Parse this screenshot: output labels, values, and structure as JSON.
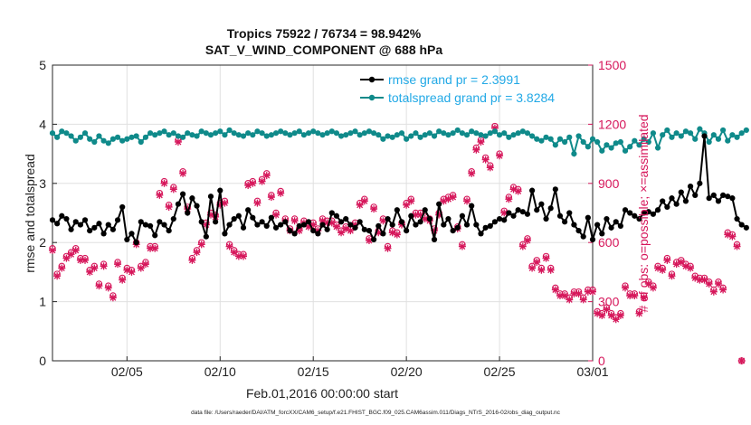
{
  "chart_data": {
    "type": "line",
    "title_line1": "Tropics 75922 / 76734 = 98.942%",
    "title_line2": "SAT_V_WIND_COMPONENT @ 688 hPa",
    "xlabel": "Feb.01,2016 00:00:00 start",
    "ylabel_left": "rmse and totalspread",
    "ylabel_right": "# of obs: o=possible; ×=assimilated",
    "footer": "data file: /Users/raeder/DAI/ATM_forcXX/CAM6_setup/f.e21.FHIST_BGC.f09_025.CAM6assim.011/Diags_NTrS_2016-02/obs_diag_output.nc",
    "xlim": [
      1,
      30
    ],
    "ylim_left": [
      0,
      5
    ],
    "ylim_right": [
      0,
      1500
    ],
    "x_ticks": [
      5,
      10,
      15,
      20,
      25,
      30
    ],
    "x_tick_labels": [
      "02/05",
      "02/10",
      "02/15",
      "02/20",
      "02/25",
      "03/01"
    ],
    "y_left_ticks": [
      "0",
      "1",
      "2",
      "3",
      "4",
      "5"
    ],
    "y_right_ticks": [
      "0",
      "300",
      "600",
      "900",
      "1200",
      "1500"
    ],
    "legend": {
      "rmse": "rmse grand pr = 2.3991",
      "spread": "totalspread grand pr = 3.8284"
    },
    "colors": {
      "rmse": "#000000",
      "spread": "#0f8a8a",
      "obs": "#d6175b",
      "legend_text": "#22a9e6"
    },
    "x_start": 1.0,
    "x_step": 0.25,
    "series": [
      {
        "name": "rmse",
        "values": [
          2.38,
          2.32,
          2.45,
          2.4,
          2.22,
          2.35,
          2.3,
          2.38,
          2.2,
          2.25,
          2.32,
          2.15,
          2.3,
          2.22,
          2.38,
          2.6,
          2.05,
          2.15,
          2.0,
          2.35,
          2.3,
          2.28,
          2.12,
          2.35,
          2.3,
          2.2,
          2.4,
          2.65,
          2.82,
          2.5,
          2.75,
          2.62,
          2.35,
          2.1,
          2.78,
          2.35,
          2.88,
          2.15,
          2.3,
          2.4,
          2.45,
          2.25,
          2.55,
          2.42,
          2.3,
          2.35,
          2.28,
          2.42,
          2.25,
          2.3,
          2.35,
          2.2,
          2.15,
          2.28,
          2.3,
          2.35,
          2.2,
          2.15,
          2.3,
          2.22,
          2.5,
          2.45,
          2.35,
          2.4,
          2.3,
          2.25,
          2.35,
          2.22,
          2.2,
          2.05,
          2.28,
          2.15,
          2.4,
          2.3,
          2.55,
          2.35,
          2.2,
          2.45,
          2.3,
          2.35,
          2.55,
          2.4,
          2.05,
          2.65,
          2.3,
          2.4,
          2.2,
          2.25,
          2.45,
          2.3,
          2.62,
          2.3,
          2.15,
          2.25,
          2.28,
          2.35,
          2.4,
          2.38,
          2.5,
          2.45,
          2.55,
          2.52,
          2.48,
          2.88,
          2.55,
          2.65,
          2.4,
          2.58,
          2.9,
          2.45,
          2.35,
          2.5,
          2.3,
          2.2,
          2.1,
          2.42,
          2.05,
          2.3,
          2.15,
          2.4,
          2.25,
          2.35,
          2.28,
          2.55,
          2.5,
          2.45,
          2.4,
          2.5,
          2.52,
          2.48,
          2.55,
          2.7,
          2.6,
          2.75,
          2.65,
          2.85,
          2.7,
          2.95,
          2.8,
          3.0,
          3.8,
          2.75,
          2.8,
          2.7,
          2.8,
          2.78,
          2.75,
          2.4,
          2.3,
          2.25
        ]
      },
      {
        "name": "totalspread",
        "values": [
          3.85,
          3.78,
          3.88,
          3.85,
          3.8,
          3.72,
          3.78,
          3.85,
          3.75,
          3.7,
          3.8,
          3.72,
          3.68,
          3.75,
          3.78,
          3.72,
          3.75,
          3.78,
          3.8,
          3.7,
          3.78,
          3.85,
          3.82,
          3.85,
          3.88,
          3.82,
          3.85,
          3.8,
          3.78,
          3.85,
          3.82,
          3.8,
          3.88,
          3.85,
          3.82,
          3.85,
          3.88,
          3.82,
          3.9,
          3.85,
          3.82,
          3.8,
          3.85,
          3.82,
          3.88,
          3.85,
          3.8,
          3.82,
          3.85,
          3.88,
          3.85,
          3.82,
          3.85,
          3.88,
          3.82,
          3.85,
          3.88,
          3.85,
          3.82,
          3.85,
          3.88,
          3.85,
          3.8,
          3.82,
          3.85,
          3.88,
          3.82,
          3.85,
          3.88,
          3.85,
          3.82,
          3.75,
          3.8,
          3.78,
          3.82,
          3.85,
          3.75,
          3.8,
          3.85,
          3.78,
          3.82,
          3.85,
          3.8,
          3.88,
          3.85,
          3.82,
          3.85,
          3.9,
          3.85,
          3.82,
          3.88,
          3.85,
          3.82,
          3.8,
          3.85,
          3.88,
          3.82,
          3.85,
          3.78,
          3.82,
          3.85,
          3.88,
          3.85,
          3.8,
          3.75,
          3.72,
          3.78,
          3.75,
          3.65,
          3.75,
          3.7,
          3.78,
          3.5,
          3.8,
          3.7,
          3.62,
          3.75,
          3.7,
          3.55,
          3.65,
          3.6,
          3.68,
          3.7,
          3.55,
          3.62,
          3.72,
          3.65,
          3.75,
          3.7,
          3.85,
          3.6,
          3.82,
          3.9,
          3.78,
          3.85,
          3.8,
          3.88,
          3.85,
          3.75,
          3.92,
          3.85,
          3.7,
          3.82,
          3.75,
          3.9,
          3.72,
          3.82,
          3.78,
          3.85,
          3.9
        ]
      },
      {
        "name": "obs_possible",
        "values": [
          570,
          440,
          480,
          530,
          550,
          570,
          520,
          520,
          460,
          480,
          390,
          490,
          380,
          330,
          500,
          420,
          470,
          460,
          600,
          480,
          500,
          580,
          580,
          850,
          910,
          790,
          880,
          1120,
          960,
          780,
          520,
          560,
          600,
          700,
          750,
          740,
          800,
          810,
          590,
          560,
          540,
          540,
          900,
          910,
          810,
          920,
          950,
          840,
          750,
          860,
          720,
          670,
          720,
          670,
          710,
          690,
          700,
          670,
          720,
          710,
          710,
          690,
          660,
          680,
          670,
          700,
          800,
          820,
          620,
          780,
          660,
          720,
          580,
          660,
          650,
          700,
          800,
          820,
          750,
          750,
          730,
          720,
          670,
          750,
          820,
          830,
          840,
          680,
          590,
          820,
          960,
          1080,
          1120,
          1030,
          990,
          1190,
          1050,
          760,
          830,
          880,
          870,
          590,
          620,
          480,
          510,
          470,
          530,
          470,
          370,
          340,
          340,
          320,
          350,
          350,
          320,
          360,
          360,
          250,
          240,
          270,
          240,
          220,
          240,
          380,
          340,
          340,
          250,
          330,
          400,
          380,
          480,
          470,
          520,
          440,
          500,
          510,
          490,
          480,
          430,
          420,
          420,
          400,
          360,
          400,
          370,
          650,
          640,
          590,
          0
        ]
      },
      {
        "name": "obs_assimilated",
        "values": [
          560,
          430,
          470,
          520,
          540,
          560,
          510,
          510,
          450,
          470,
          380,
          480,
          370,
          320,
          490,
          410,
          460,
          450,
          590,
          470,
          490,
          570,
          570,
          840,
          900,
          780,
          870,
          1110,
          950,
          770,
          510,
          550,
          590,
          690,
          740,
          730,
          790,
          800,
          580,
          550,
          530,
          530,
          890,
          900,
          800,
          910,
          940,
          830,
          740,
          850,
          710,
          660,
          710,
          660,
          700,
          680,
          690,
          660,
          710,
          700,
          700,
          680,
          650,
          670,
          660,
          690,
          790,
          810,
          610,
          770,
          650,
          710,
          570,
          650,
          640,
          690,
          790,
          810,
          740,
          740,
          720,
          710,
          660,
          740,
          810,
          820,
          830,
          670,
          580,
          810,
          950,
          1070,
          1110,
          1020,
          980,
          1180,
          1040,
          750,
          820,
          870,
          860,
          580,
          610,
          470,
          500,
          460,
          520,
          460,
          360,
          330,
          330,
          310,
          340,
          340,
          310,
          350,
          350,
          240,
          230,
          260,
          230,
          210,
          230,
          370,
          330,
          330,
          240,
          320,
          390,
          370,
          470,
          460,
          510,
          430,
          490,
          500,
          480,
          470,
          420,
          410,
          410,
          390,
          350,
          390,
          360,
          640,
          630,
          580,
          0
        ]
      }
    ]
  }
}
